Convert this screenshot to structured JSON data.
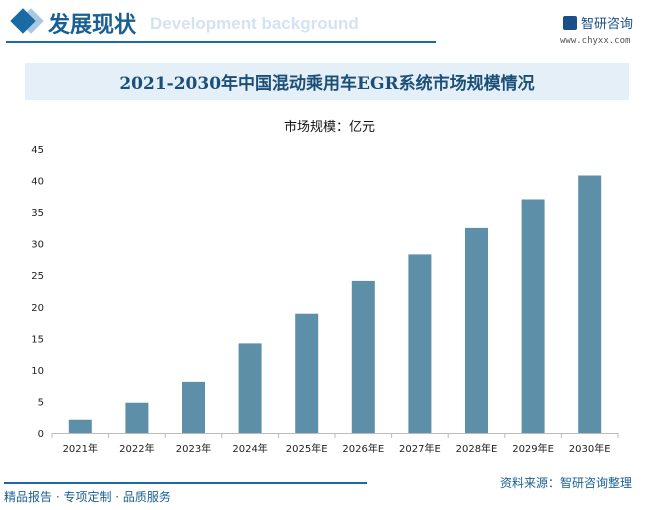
{
  "header": {
    "title": "发展现状",
    "subtitle": "Development background",
    "logo": "智研咨询",
    "url": "www.chyxx.com"
  },
  "footer": {
    "source": "资料来源：智研咨询整理",
    "tagline": "精品报告 · 专项定制 · 品质服务"
  },
  "colors": {
    "bar": "#5e8fa8",
    "accent": "#1a6aa6"
  },
  "chart_data": {
    "type": "bar",
    "title": "2021-2030年中国混动乘用车EGR系统市场规模情况",
    "ylabel": "市场规模：亿元",
    "xlabel": "",
    "categories": [
      "2021年",
      "2022年",
      "2023年",
      "2024年",
      "2025年E",
      "2026年E",
      "2027年E",
      "2028年E",
      "2029年E",
      "2030年E"
    ],
    "values": [
      2.1,
      4.8,
      8.1,
      14.2,
      18.9,
      24.1,
      28.3,
      32.5,
      37.0,
      40.8
    ],
    "ylim": [
      0,
      45
    ],
    "yticks": [
      "0",
      "5",
      "10",
      "15",
      "20",
      "25",
      "30",
      "35",
      "40",
      "45"
    ],
    "grid": false
  }
}
